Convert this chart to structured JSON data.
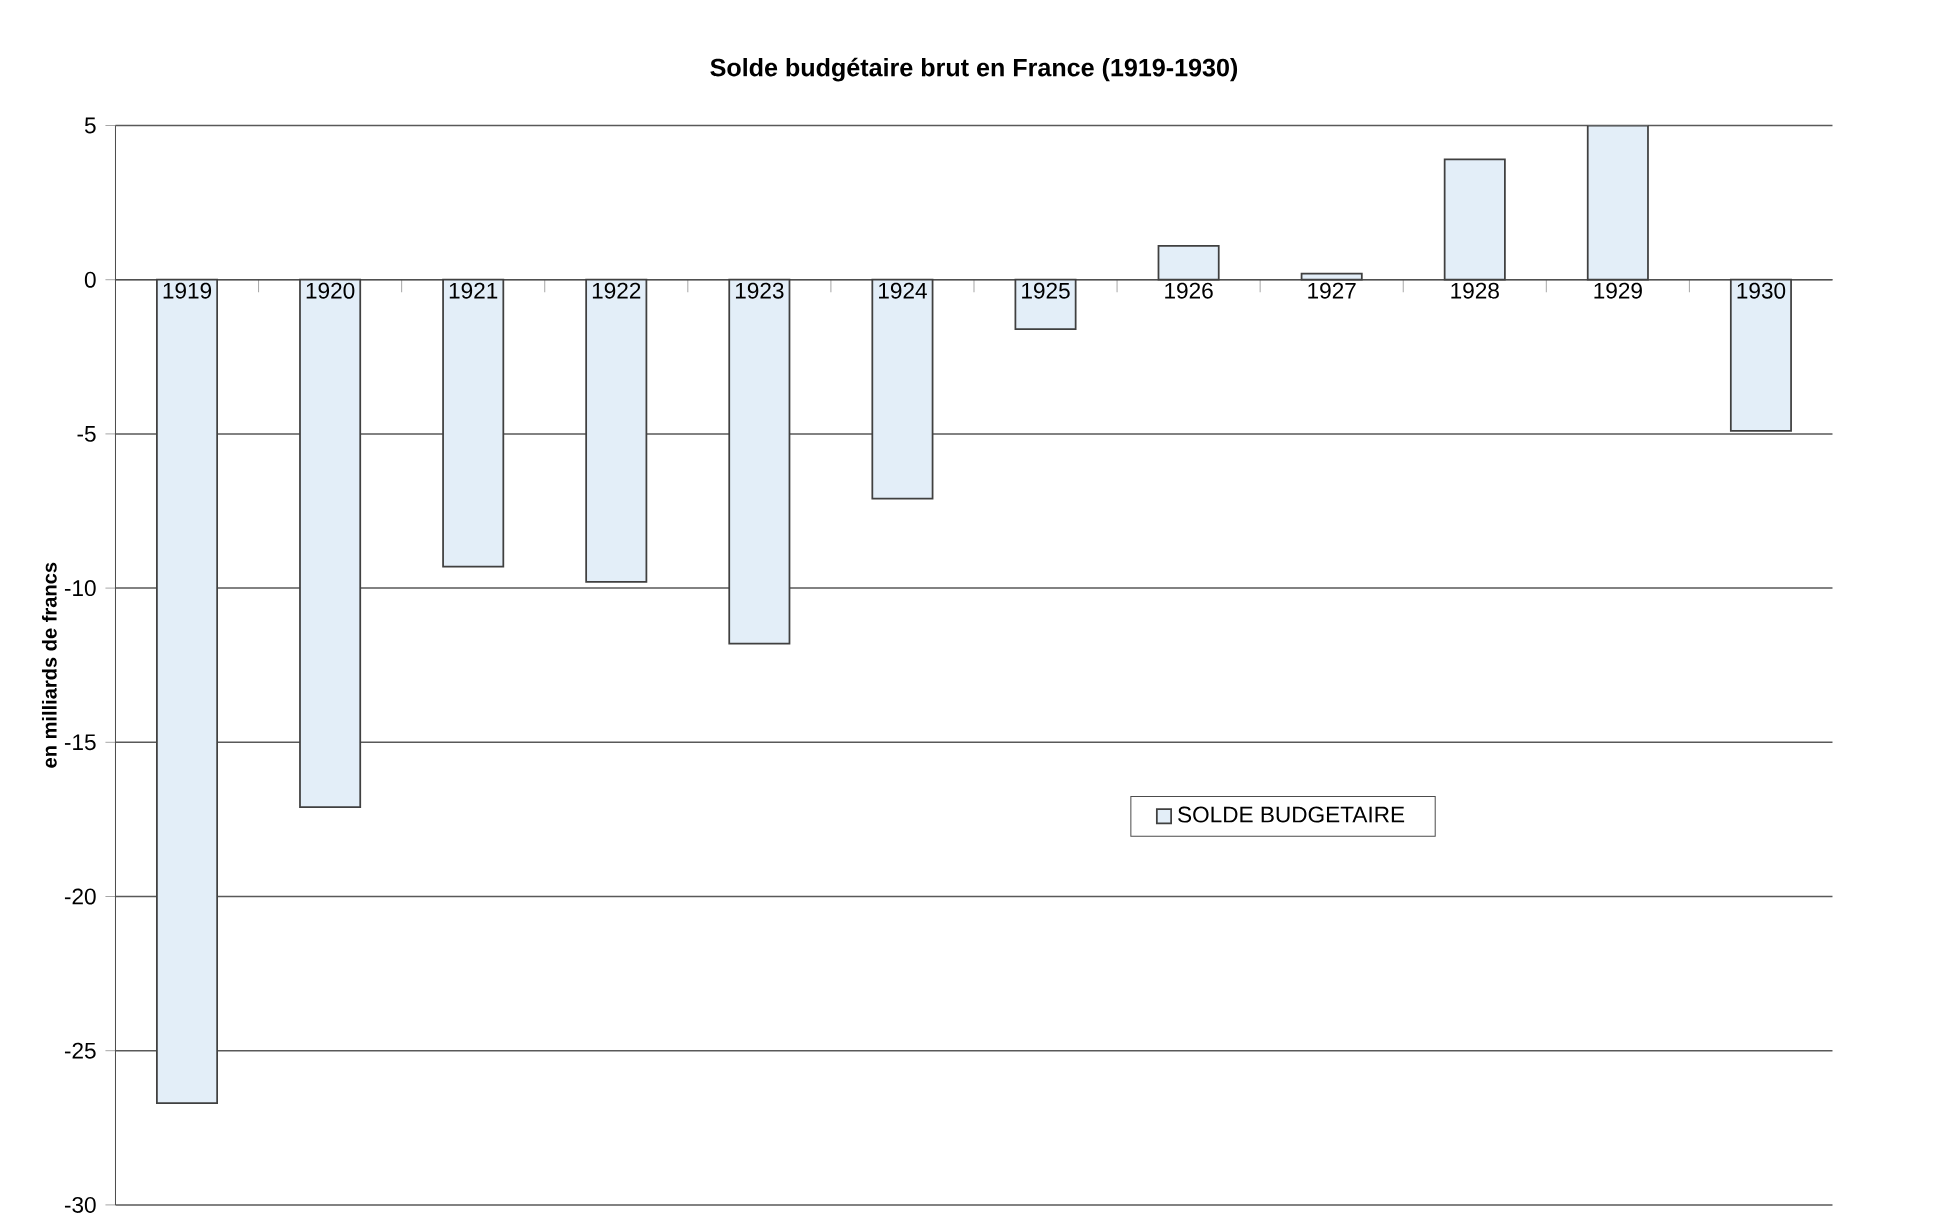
{
  "chart_data": {
    "type": "bar",
    "title": "Solde budgétaire brut en France (1919-1930)",
    "ylabel": "en milliards de francs",
    "categories": [
      "1919",
      "1920",
      "1921",
      "1922",
      "1923",
      "1924",
      "1925",
      "1926",
      "1927",
      "1928",
      "1929",
      "1930"
    ],
    "series": [
      {
        "name": "SOLDE BUDGETAIRE",
        "color": "#e3eef8",
        "values": [
          -26.7,
          -17.1,
          -9.3,
          -9.8,
          -11.8,
          -7.1,
          -1.6,
          1.1,
          0.2,
          3.9,
          5.0,
          -4.9
        ]
      }
    ],
    "ylim": [
      -30,
      5
    ],
    "yticks": [
      -30,
      -25,
      -20,
      -15,
      -10,
      -5,
      0,
      5
    ],
    "grid": "y",
    "legend": "center"
  }
}
